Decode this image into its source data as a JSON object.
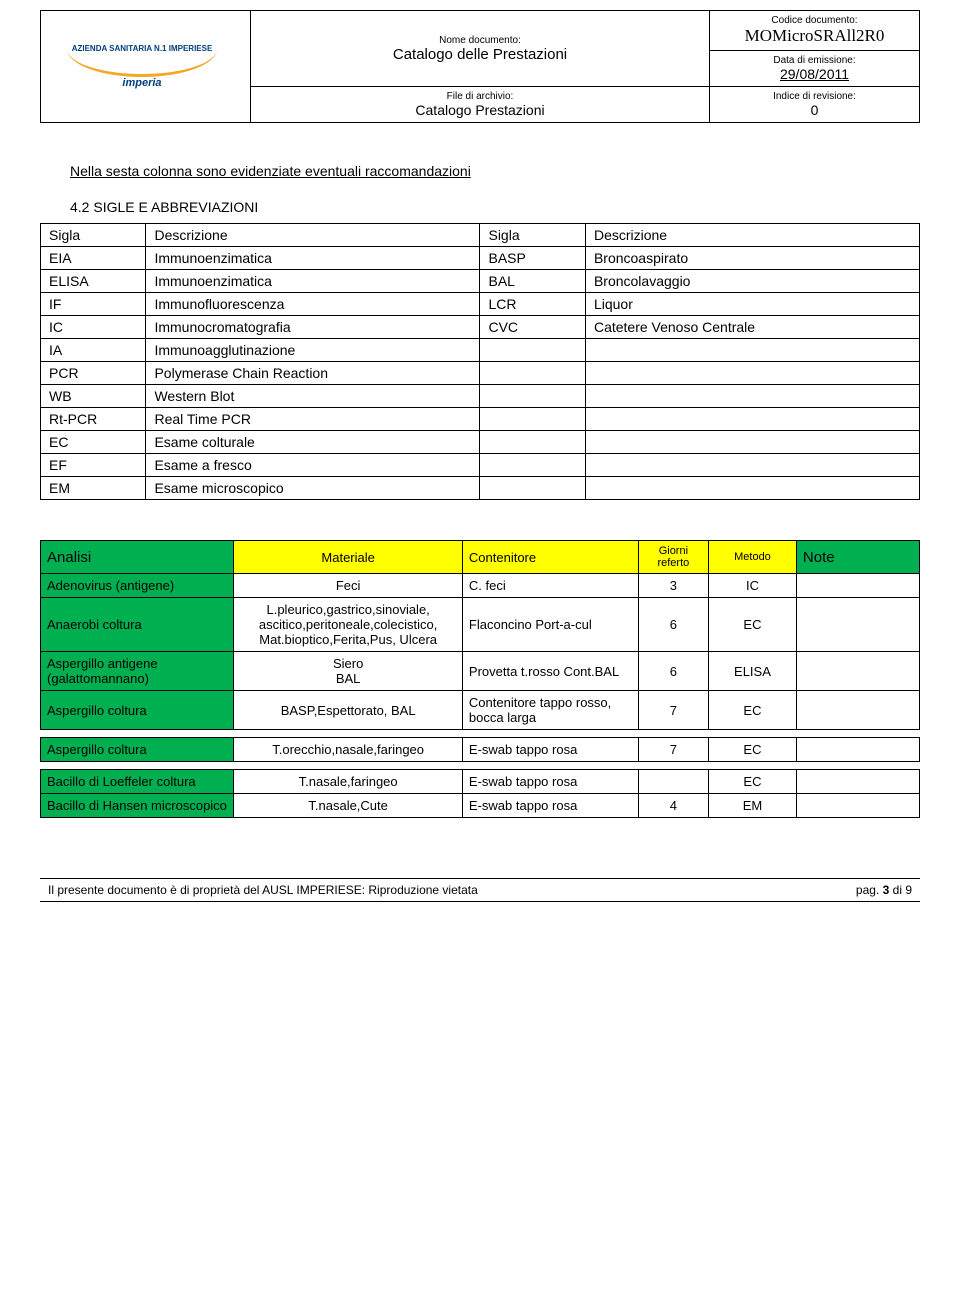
{
  "header": {
    "logo_text": "AZIENDA SANITARIA N.1 IMPERIESE",
    "logo_sub": "imperia",
    "nome_documento_label": "Nome documento:",
    "nome_documento_value": "Catalogo delle Prestazioni",
    "file_archivio_label": "File di archivio:",
    "file_archivio_value": "Catalogo Prestazioni",
    "codice_documento_label": "Codice documento:",
    "codice_documento_value": "MOMicroSRAll2R0",
    "data_emissione_label": "Data di emissione:",
    "data_emissione_value": "29/08/2011",
    "indice_revisione_label": "Indice di revisione:",
    "indice_revisione_value": "0"
  },
  "intro_text": "Nella sesta colonna sono evidenziate eventuali raccomandazioni",
  "subsection_title": "4.2 SIGLE E ABBREVIAZIONI",
  "abbrev_headers": {
    "sigla1": "Sigla",
    "desc1": "Descrizione",
    "sigla2": "Sigla",
    "desc2": "Descrizione"
  },
  "abbrev_rows": [
    {
      "c1": "EIA",
      "c2": "Immunoenzimatica",
      "c3": "BASP",
      "c4": "Broncoaspirato"
    },
    {
      "c1": "ELISA",
      "c2": "Immunoenzimatica",
      "c3": "BAL",
      "c4": "Broncolavaggio"
    },
    {
      "c1": "IF",
      "c2": "Immunofluorescenza",
      "c3": "LCR",
      "c4": "Liquor"
    },
    {
      "c1": "IC",
      "c2": "Immunocromatografia",
      "c3": "CVC",
      "c4": "Catetere Venoso Centrale"
    },
    {
      "c1": "IA",
      "c2": "Immunoagglutinazione",
      "c3": "",
      "c4": ""
    },
    {
      "c1": "PCR",
      "c2": "Polymerase Chain Reaction",
      "c3": "",
      "c4": ""
    },
    {
      "c1": "WB",
      "c2": "Western Blot",
      "c3": "",
      "c4": ""
    },
    {
      "c1": "Rt-PCR",
      "c2": "Real Time PCR",
      "c3": "",
      "c4": ""
    },
    {
      "c1": "EC",
      "c2": "Esame colturale",
      "c3": "",
      "c4": ""
    },
    {
      "c1": "EF",
      "c2": "Esame a fresco",
      "c3": "",
      "c4": ""
    },
    {
      "c1": "EM",
      "c2": "Esame microscopico",
      "c3": "",
      "c4": ""
    }
  ],
  "analisi_headers": {
    "c1": "Analisi",
    "c2": "Materiale",
    "c3": "Contenitore",
    "c4": "Giorni referto",
    "c5": "Metodo",
    "c6": "Note"
  },
  "analisi_rows_group1": [
    {
      "c1": "Adenovirus (antigene)",
      "c2": "Feci",
      "c3": "C. feci",
      "c4": "3",
      "c5": "IC",
      "c6": ""
    },
    {
      "c1": "Anaerobi coltura",
      "c2": "L.pleurico,gastrico,sinoviale, ascitico,peritoneale,colecistico, Mat.bioptico,Ferita,Pus, Ulcera",
      "c3": "Flaconcino Port-a-cul",
      "c4": "6",
      "c5": "EC",
      "c6": ""
    },
    {
      "c1": "Aspergillo antigene (galattomannano)",
      "c2": "Siero\nBAL",
      "c3": "Provetta t.rosso Cont.BAL",
      "c4": "6",
      "c5": "ELISA",
      "c6": ""
    },
    {
      "c1": "Aspergillo coltura",
      "c2": "BASP,Espettorato, BAL",
      "c3": "Contenitore tappo rosso, bocca larga",
      "c4": "7",
      "c5": "EC",
      "c6": ""
    }
  ],
  "analisi_rows_group2": [
    {
      "c1": "Aspergillo coltura",
      "c2": "T.orecchio,nasale,faringeo",
      "c3": "E-swab tappo rosa",
      "c4": "7",
      "c5": "EC",
      "c6": ""
    }
  ],
  "analisi_rows_group3": [
    {
      "c1": "Bacillo di Loeffeler coltura",
      "c2": "T.nasale,faringeo",
      "c3": "E-swab tappo rosa",
      "c4": "",
      "c5": "EC",
      "c6": ""
    },
    {
      "c1": "Bacillo di Hansen microscopico",
      "c2": "T.nasale,Cute",
      "c3": "E-swab tappo rosa",
      "c4": "4",
      "c5": "EM",
      "c6": ""
    }
  ],
  "footer": {
    "left": "Il presente documento è di proprietà del AUSL IMPERIESE: Riproduzione vietata",
    "right": "pag. 3 di 9"
  },
  "colors": {
    "yellow": "#ffff00",
    "green": "#00b050",
    "black": "#000000",
    "white": "#ffffff",
    "logo_blue": "#003e7e",
    "logo_orange": "#f5a623"
  }
}
